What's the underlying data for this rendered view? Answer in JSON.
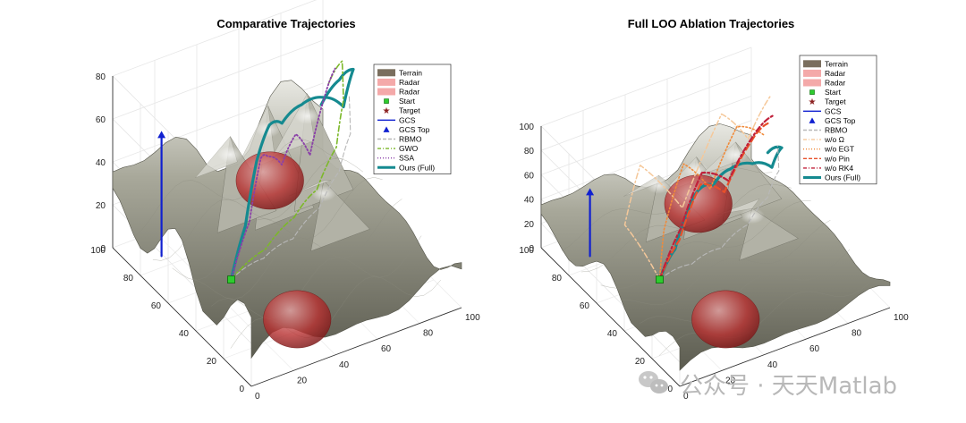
{
  "chart_data": [
    {
      "type": "3d-surface-trajectory",
      "title": "Comparative Trajectories",
      "axes": {
        "x": {
          "range": [
            0,
            100
          ],
          "ticks": [
            0,
            20,
            40,
            60,
            80,
            100
          ]
        },
        "y": {
          "range": [
            0,
            100
          ],
          "ticks": [
            0,
            20,
            40,
            60,
            80,
            100
          ]
        },
        "z": {
          "range": [
            0,
            80
          ],
          "ticks": [
            0,
            20,
            40,
            60,
            80
          ]
        }
      },
      "grid": true,
      "legend_position": "top-right",
      "legend": [
        {
          "label": "Terrain",
          "kind": "patch",
          "color": "#7a6e5e"
        },
        {
          "label": "Radar",
          "kind": "patch",
          "color": "#f4a9a9"
        },
        {
          "label": "Radar",
          "kind": "patch",
          "color": "#f4a9a9"
        },
        {
          "label": "Start",
          "kind": "marker-square",
          "color": "#2ecc2e"
        },
        {
          "label": "Target",
          "kind": "marker-star",
          "color": "#8b2020"
        },
        {
          "label": "GCS",
          "kind": "line-solid",
          "color": "#1020d0"
        },
        {
          "label": "GCS Top",
          "kind": "marker-triangle",
          "color": "#1020d0"
        },
        {
          "label": "RBMO",
          "kind": "line-dashed",
          "color": "#b8b8b8"
        },
        {
          "label": "GWO",
          "kind": "line-dashdot",
          "color": "#7cb82a"
        },
        {
          "label": "SSA",
          "kind": "line-dotted",
          "color": "#8a3fa8"
        },
        {
          "label": "Ours (Full)",
          "kind": "line-thick",
          "color": "#158a90"
        }
      ],
      "radars": [
        {
          "x": 35,
          "y": 20,
          "z": 0,
          "r": 18
        },
        {
          "x": 55,
          "y": 70,
          "z": 25,
          "r": 18
        }
      ],
      "start": {
        "x": 30,
        "y": 60,
        "z": 0
      },
      "series": [
        {
          "name": "Ours (Full)",
          "points": [
            [
              30,
              60,
              0
            ],
            [
              40,
              65,
              18
            ],
            [
              50,
              72,
              40
            ],
            [
              58,
              75,
              52
            ],
            [
              66,
              78,
              48
            ],
            [
              74,
              76,
              55
            ],
            [
              82,
              72,
              58
            ],
            [
              90,
              70,
              52
            ],
            [
              96,
              72,
              66
            ],
            [
              92,
              76,
              60
            ],
            [
              86,
              80,
              48
            ]
          ]
        },
        {
          "name": "GWO",
          "points": [
            [
              30,
              60,
              0
            ],
            [
              45,
              58,
              10
            ],
            [
              60,
              60,
              18
            ],
            [
              72,
              62,
              25
            ],
            [
              84,
              66,
              38
            ],
            [
              90,
              70,
              55
            ],
            [
              92,
              74,
              70
            ],
            [
              88,
              78,
              58
            ]
          ]
        },
        {
          "name": "SSA",
          "points": [
            [
              30,
              60,
              0
            ],
            [
              40,
              62,
              22
            ],
            [
              48,
              66,
              46
            ],
            [
              54,
              70,
              42
            ],
            [
              62,
              72,
              34
            ],
            [
              70,
              74,
              44
            ],
            [
              78,
              76,
              30
            ],
            [
              86,
              78,
              52
            ],
            [
              90,
              76,
              66
            ]
          ]
        },
        {
          "name": "RBMO",
          "points": [
            [
              30,
              60,
              0
            ],
            [
              44,
              58,
              6
            ],
            [
              58,
              58,
              10
            ],
            [
              72,
              60,
              18
            ],
            [
              84,
              64,
              28
            ],
            [
              92,
              68,
              40
            ],
            [
              94,
              72,
              55
            ]
          ]
        },
        {
          "name": "GCS",
          "points": [
            [
              14,
              86,
              0
            ],
            [
              14,
              86,
              55
            ]
          ]
        }
      ]
    },
    {
      "type": "3d-surface-trajectory",
      "title": "Full LOO Ablation Trajectories",
      "axes": {
        "x": {
          "range": [
            0,
            100
          ],
          "ticks": [
            0,
            20,
            40,
            60,
            80,
            100
          ]
        },
        "y": {
          "range": [
            0,
            100
          ],
          "ticks": [
            0,
            20,
            40,
            60,
            80,
            100
          ]
        },
        "z": {
          "range": [
            0,
            100
          ],
          "ticks": [
            0,
            20,
            40,
            60,
            80,
            100
          ]
        }
      },
      "grid": true,
      "legend_position": "top-right",
      "legend": [
        {
          "label": "Terrain",
          "kind": "patch",
          "color": "#7a6e5e"
        },
        {
          "label": "Radar",
          "kind": "patch",
          "color": "#f4a9a9"
        },
        {
          "label": "Radar",
          "kind": "patch",
          "color": "#f4a9a9"
        },
        {
          "label": "Start",
          "kind": "marker-square",
          "color": "#2ecc2e"
        },
        {
          "label": "Target",
          "kind": "marker-star",
          "color": "#8b2020"
        },
        {
          "label": "GCS",
          "kind": "line-solid",
          "color": "#1020d0"
        },
        {
          "label": "GCS Top",
          "kind": "marker-triangle",
          "color": "#1020d0"
        },
        {
          "label": "RBMO",
          "kind": "line-dashed",
          "color": "#b8b8b8"
        },
        {
          "label": "w/o Ω",
          "kind": "line-dashdot",
          "color": "#f5c89a"
        },
        {
          "label": "w/o EGT",
          "kind": "line-dotted",
          "color": "#f08a3a"
        },
        {
          "label": "w/o Pin",
          "kind": "line-dashed",
          "color": "#e8502a"
        },
        {
          "label": "w/o RK4",
          "kind": "line-dashdot",
          "color": "#c0203a"
        },
        {
          "label": "Ours (Full)",
          "kind": "line-thick",
          "color": "#158a90"
        }
      ],
      "radars": [
        {
          "x": 35,
          "y": 20,
          "z": 0,
          "r": 18
        },
        {
          "x": 55,
          "y": 70,
          "z": 25,
          "r": 18
        }
      ],
      "start": {
        "x": 30,
        "y": 60,
        "z": 0
      },
      "series": [
        {
          "name": "Ours (Full)",
          "points": [
            [
              30,
              60,
              0
            ],
            [
              40,
              64,
              14
            ],
            [
              50,
              70,
              32
            ],
            [
              58,
              74,
              40
            ],
            [
              66,
              76,
              36
            ],
            [
              74,
              76,
              44
            ],
            [
              82,
              72,
              48
            ],
            [
              90,
              70,
              42
            ],
            [
              96,
              72,
              52
            ],
            [
              92,
              76,
              46
            ]
          ]
        },
        {
          "name": "w/o Ω",
          "points": [
            [
              30,
              60,
              0
            ],
            [
              20,
              70,
              40
            ],
            [
              30,
              74,
              78
            ],
            [
              50,
              74,
              30
            ],
            [
              70,
              76,
              92
            ],
            [
              84,
              78,
              60
            ],
            [
              92,
              74,
              95
            ]
          ]
        },
        {
          "name": "w/o EGT",
          "points": [
            [
              30,
              60,
              0
            ],
            [
              36,
              66,
              30
            ],
            [
              48,
              70,
              72
            ],
            [
              62,
              72,
              40
            ],
            [
              76,
              74,
              80
            ],
            [
              90,
              76,
              62
            ]
          ]
        },
        {
          "name": "w/o Pin",
          "points": [
            [
              30,
              60,
              0
            ],
            [
              42,
              64,
              20
            ],
            [
              56,
              70,
              50
            ],
            [
              70,
              74,
              30
            ],
            [
              84,
              76,
              60
            ],
            [
              92,
              76,
              70
            ]
          ]
        },
        {
          "name": "w/o RK4",
          "points": [
            [
              30,
              60,
              0
            ],
            [
              44,
              66,
              26
            ],
            [
              58,
              72,
              56
            ],
            [
              72,
              74,
              38
            ],
            [
              86,
              76,
              66
            ],
            [
              94,
              74,
              78
            ]
          ]
        },
        {
          "name": "RBMO",
          "points": [
            [
              30,
              60,
              0
            ],
            [
              44,
              58,
              6
            ],
            [
              58,
              58,
              10
            ],
            [
              72,
              60,
              18
            ],
            [
              84,
              64,
              28
            ],
            [
              92,
              68,
              40
            ],
            [
              94,
              72,
              55
            ]
          ]
        },
        {
          "name": "GCS",
          "points": [
            [
              14,
              86,
              0
            ],
            [
              14,
              86,
              50
            ]
          ]
        }
      ]
    }
  ],
  "watermark": {
    "icon": "wechat-icon",
    "text": "公众号 · 天天Matlab"
  }
}
